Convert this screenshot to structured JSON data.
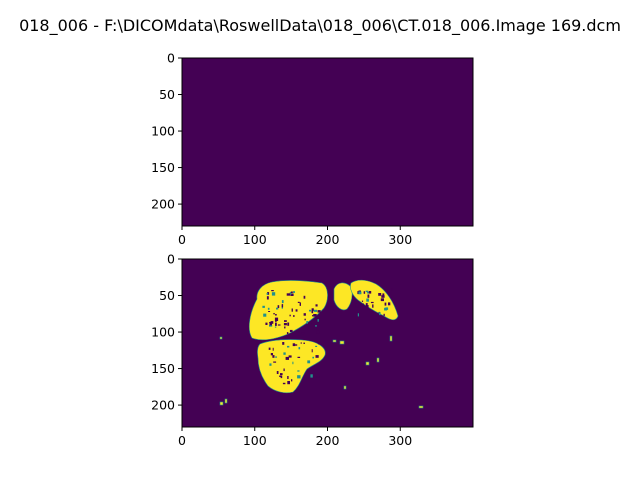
{
  "window": {
    "title": "018_006 - F:\\DICOMdata\\RoswellData\\018_006\\CT.018_006.Image 169.dcm"
  },
  "colors": {
    "background_class": "#440154",
    "foreground_class": "#fde725",
    "mid_class": "#21918c"
  },
  "chart_data": [
    {
      "type": "heatmap",
      "colormap": "viridis",
      "shape": [
        230,
        400
      ],
      "xlim": [
        0,
        400
      ],
      "ylim": [
        230,
        0
      ],
      "xticks": [
        0,
        100,
        200,
        300
      ],
      "yticks": [
        0,
        50,
        100,
        150,
        200
      ],
      "xtick_labels": [
        "0",
        "100",
        "200",
        "300"
      ],
      "ytick_labels": [
        "0",
        "50",
        "100",
        "150",
        "200"
      ],
      "content": "all background (value 0)",
      "grid": false
    },
    {
      "type": "heatmap",
      "colormap": "viridis",
      "shape": [
        230,
        400
      ],
      "xlim": [
        0,
        400
      ],
      "ylim": [
        230,
        0
      ],
      "xticks": [
        0,
        100,
        200,
        300
      ],
      "yticks": [
        0,
        50,
        100,
        150,
        200
      ],
      "xtick_labels": [
        "0",
        "100",
        "200",
        "300"
      ],
      "ytick_labels": [
        "0",
        "50",
        "100",
        "150",
        "200"
      ],
      "content": "binary lung segmentation mask: two lung regions (value 1) on background (value 0)",
      "regions": [
        {
          "name": "left-lung-upper",
          "x_range": [
            90,
            200
          ],
          "y_range": [
            32,
            118
          ]
        },
        {
          "name": "left-lung-lower",
          "x_range": [
            105,
            198
          ],
          "y_range": [
            110,
            182
          ]
        },
        {
          "name": "right-lung",
          "x_range": [
            205,
            295
          ],
          "y_range": [
            28,
            90
          ]
        }
      ],
      "grid": false
    }
  ]
}
